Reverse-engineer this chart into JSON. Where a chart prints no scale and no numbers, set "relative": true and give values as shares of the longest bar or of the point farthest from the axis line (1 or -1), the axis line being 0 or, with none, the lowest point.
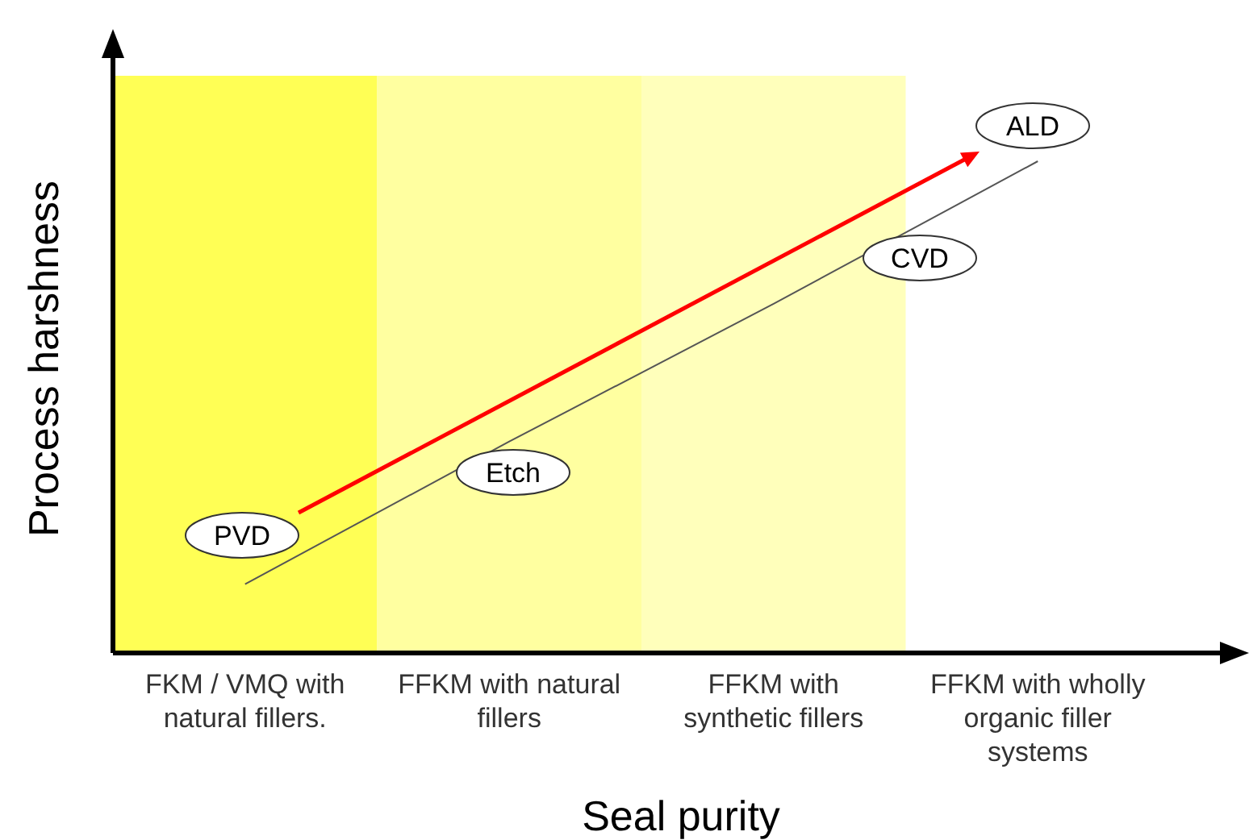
{
  "chart_data": {
    "type": "line",
    "relative": true,
    "xlabel": "Seal purity",
    "ylabel": "Process harshness",
    "categories": [
      "FKM / VMQ with natural fillers.",
      "FFKM with natural fillers",
      "FFKM with synthetic fillers",
      "FFKM with wholly organic filler systems"
    ],
    "series": [
      {
        "values": [
          0.14,
          0.43,
          0.71,
          1
        ],
        "color": "#555555"
      }
    ],
    "bands": [
      {
        "axis": "x",
        "from": "FKM / VMQ with natural fillers.",
        "to": "FKM / VMQ with natural fillers.",
        "color": "#ffff55"
      },
      {
        "axis": "x",
        "from": "FFKM with natural fillers",
        "to": "FFKM with natural fillers",
        "color": "#ffffa0"
      },
      {
        "axis": "x",
        "from": "FFKM with synthetic fillers",
        "to": "FFKM with synthetic fillers",
        "color": "#ffffbb"
      }
    ],
    "annotations": [
      "PVD",
      "Etch",
      "CVD",
      "ALD"
    ]
  }
}
